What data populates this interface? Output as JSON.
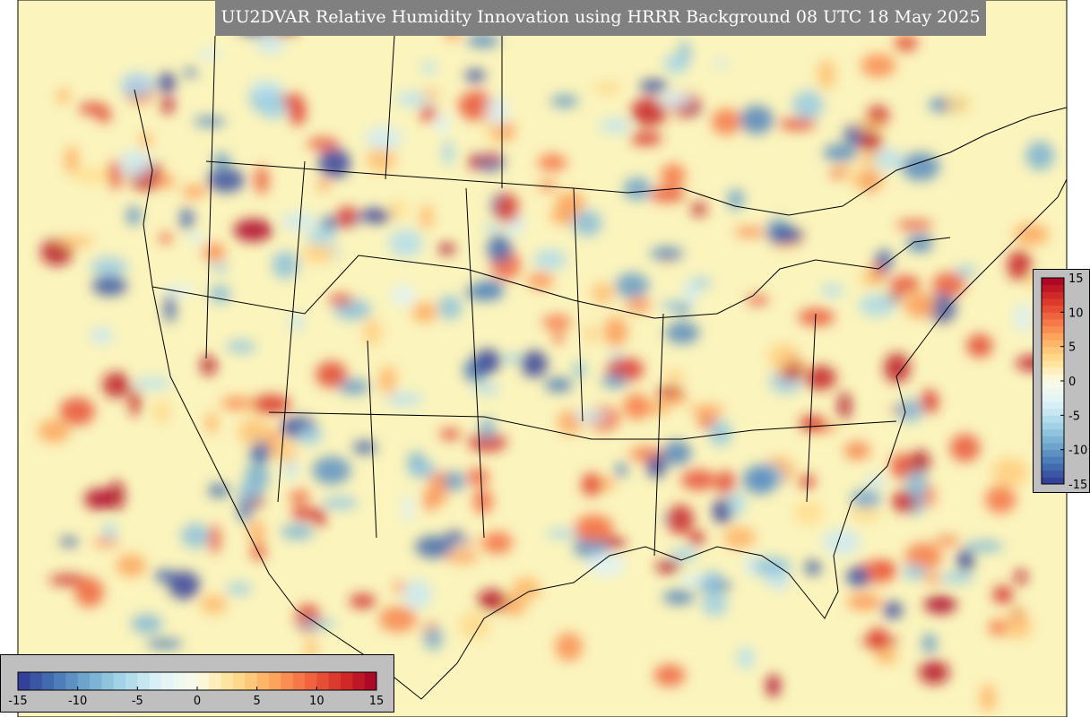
{
  "title": "UU2DVAR Relative Humidity Innovation using HRRR Background 08 UTC 18 May 2025",
  "colorbar": {
    "range": [
      -15,
      15
    ],
    "ticks": [
      -15,
      -10,
      -5,
      0,
      5,
      10,
      15
    ],
    "colors": [
      "#313695",
      "#4575b4",
      "#74add1",
      "#abd9e9",
      "#e0f3f8",
      "#fbfbe8",
      "#fee090",
      "#fdae61",
      "#f46d43",
      "#d73027",
      "#a50026"
    ]
  }
}
